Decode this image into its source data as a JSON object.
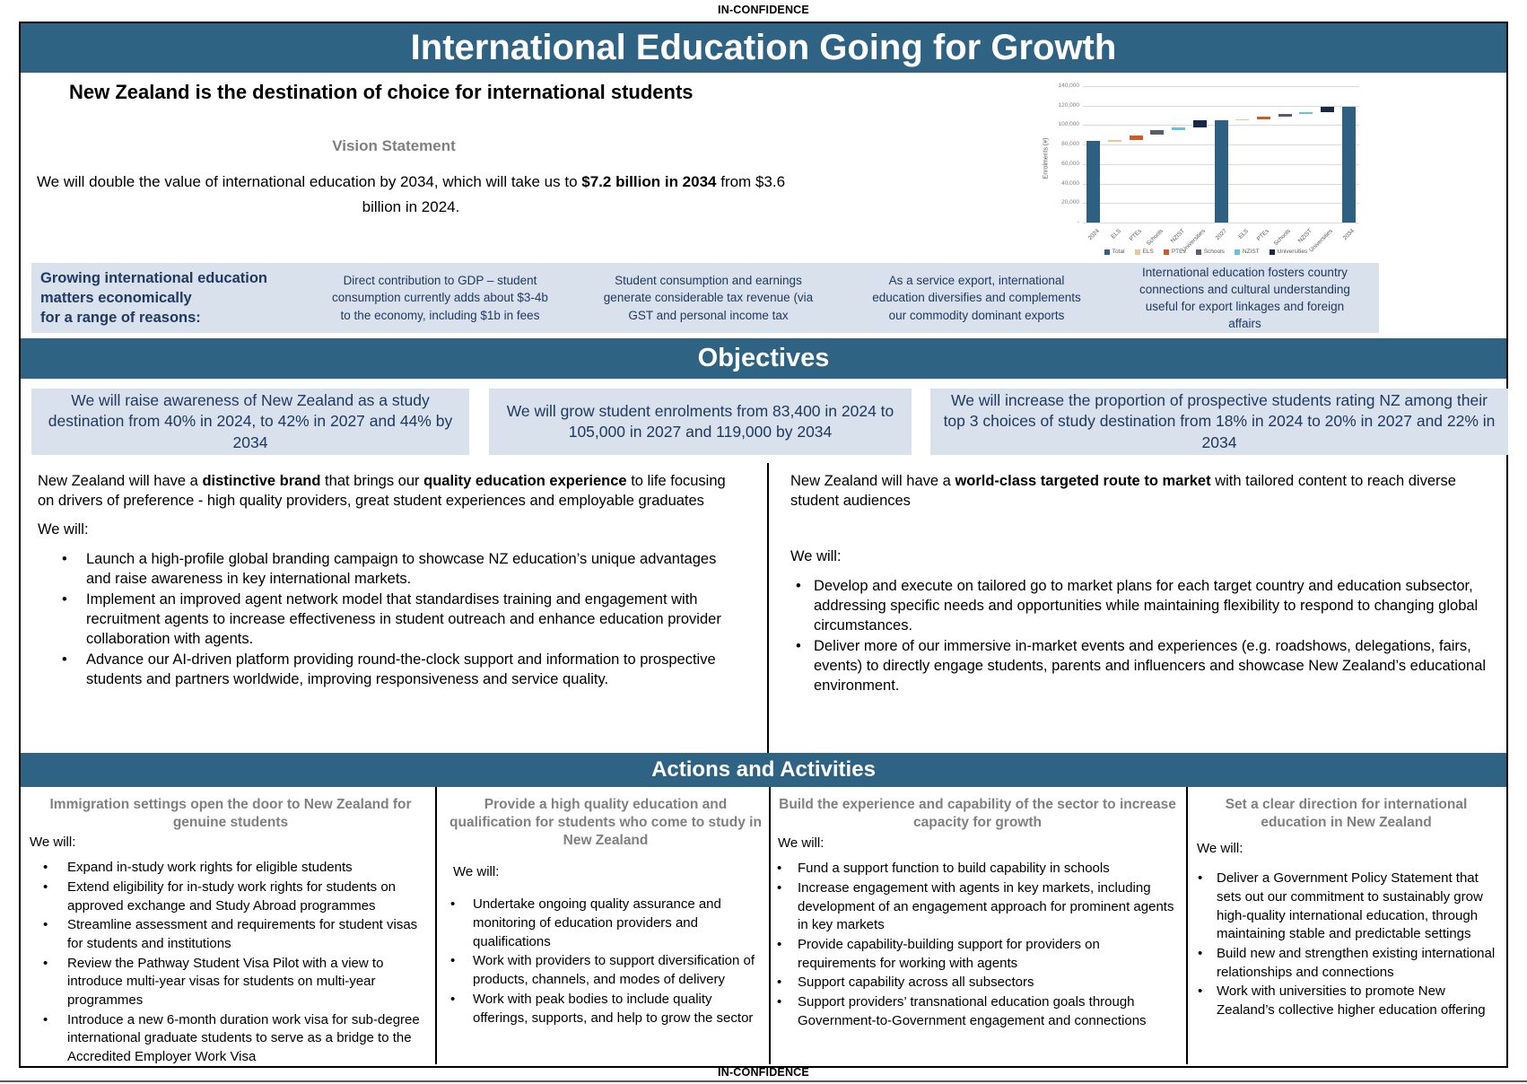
{
  "classification": {
    "top": "IN-CONFIDENCE",
    "bottom": "IN-CONFIDENCE"
  },
  "title": "International Education Going for Growth",
  "intro": {
    "heading": "New Zealand is the destination of choice for international students",
    "vision_label": "Vision Statement",
    "vision_rich": [
      {
        "t": "We will double the value of international education by 2034, which will take us to "
      },
      {
        "t": "$7.2 billion in 2034",
        "b": true
      },
      {
        "t": " from $3.6 billion in 2024."
      }
    ]
  },
  "economic": {
    "lead": "Growing international education\nmatters economically\nfor a range of reasons:",
    "items": [
      "Direct contribution to GDP – student consumption currently adds about $3-4b to the economy, including $1b in fees",
      "Student consumption and earnings generate considerable tax revenue (via GST and personal income tax",
      "As a service export, international education diversifies and complements our commodity dominant exports",
      "International education fosters country connections and cultural understanding useful for export linkages and foreign affairs"
    ]
  },
  "objectives": {
    "title": "Objectives",
    "boxes": [
      "We will raise awareness of New Zealand as a study destination from 40% in 2024, to 42% in 2027 and 44% by 2034",
      "We will grow student enrolments from 83,400 in 2024 to 105,000 in 2027 and 119,000 by 2034",
      "We will increase the proportion of prospective students rating NZ among their top 3 choices of study destination from 18% in 2024 to 20% in 2027 and 22% in 2034"
    ]
  },
  "strategies": {
    "left": {
      "intro_rich": [
        {
          "t": "New Zealand will have a "
        },
        {
          "t": "distinctive brand",
          "b": true
        },
        {
          "t": " that brings our "
        },
        {
          "t": "quality education experience",
          "b": true
        },
        {
          "t": " to life focusing on drivers of preference - high quality providers, great student experiences and employable graduates"
        }
      ],
      "we_will": "We will:",
      "bullets": [
        "Launch a high-profile global branding campaign to showcase NZ education’s unique advantages and raise awareness in key international markets.",
        "Implement an improved agent network model that standardises training and engagement with recruitment agents to increase effectiveness in student outreach and enhance education provider collaboration with agents.",
        "Advance our AI-driven platform providing round-the-clock support and information to prospective students and partners worldwide, improving responsiveness and service quality."
      ]
    },
    "right": {
      "intro_rich": [
        {
          "t": "New Zealand will have a "
        },
        {
          "t": "world-class targeted route to market",
          "b": true
        },
        {
          "t": " with tailored content to reach diverse student audiences"
        }
      ],
      "we_will": "We will:",
      "bullets": [
        "Develop and execute on tailored go to market plans for each target country and education subsector, addressing specific needs and opportunities while maintaining flexibility to respond to changing global circumstances.",
        "Deliver more of our immersive in-market events and experiences (e.g. roadshows, delegations, fairs, events) to directly engage students, parents and influencers and showcase New Zealand’s educational environment."
      ]
    }
  },
  "actions": {
    "title": "Actions and Activities",
    "columns": [
      {
        "heading": "Immigration settings open the door to New Zealand for genuine students",
        "we_will": "We will:",
        "bullets": [
          "Expand in-study work rights for eligible students",
          "Extend eligibility for in-study work rights for students on approved exchange and Study Abroad programmes",
          "Streamline assessment and requirements for student visas for students and institutions",
          "Review the Pathway Student Visa Pilot with a view to introduce multi-year visas for students on multi-year programmes",
          "Introduce a new 6-month duration work visa for sub-degree international graduate students  to serve as a bridge to the Accredited Employer Work Visa"
        ]
      },
      {
        "heading": "Provide a high quality education and qualification for students who come to study in New Zealand",
        "we_will": "We will:",
        "bullets": [
          "Undertake ongoing quality assurance and monitoring of education providers and qualifications",
          "Work with providers to support diversification of products, channels, and modes of delivery",
          "Work with peak bodies to include quality offerings, supports, and help to grow the sector"
        ]
      },
      {
        "heading": "Build the experience and capability of the sector to increase capacity for growth",
        "we_will": "We will:",
        "bullets": [
          "Fund a support function to build capability in schools",
          "Increase engagement with agents in key markets, including development of an engagement approach for prominent agents in key markets",
          "Provide capability-building support for providers on requirements for working with agents",
          "Support capability across all subsectors",
          "Support providers’ transnational education goals through Government-to-Government engagement and connections"
        ]
      },
      {
        "heading": "Set a clear direction for international education in New Zealand",
        "we_will": "We will:",
        "bullets": [
          "Deliver a Government Policy Statement that sets out our commitment to sustainably grow high-quality international education, through maintaining stable and predictable settings",
          "Build new and strengthen existing international relationships and connections",
          "Work with universities to promote New Zealand’s collective higher education offering"
        ]
      }
    ]
  },
  "chart_data": {
    "type": "bar",
    "subtype": "waterfall",
    "title": "",
    "xlabel": "",
    "ylabel": "Enrolments (#)",
    "ylim": [
      0,
      140000
    ],
    "ytick_step": 20000,
    "yticks": [
      "-",
      "20,000",
      "40,000",
      "60,000",
      "80,000",
      "100,000",
      "120,000",
      "140,000"
    ],
    "grid": true,
    "legend_position": "bottom",
    "categories": [
      "2024",
      "ELS",
      "PTEs",
      "Schools",
      "NZIST",
      "Universities",
      "2027",
      "ELS",
      "PTEs",
      "Schools",
      "NZIST",
      "Universities",
      "2034"
    ],
    "bars": [
      {
        "label": "2024",
        "series": "Total",
        "start": 0,
        "end": 83400
      },
      {
        "label": "ELS",
        "series": "ELS",
        "start": 83400,
        "end": 84600
      },
      {
        "label": "PTEs",
        "series": "PTEs",
        "start": 84600,
        "end": 89800
      },
      {
        "label": "Schools",
        "series": "Schools",
        "start": 89800,
        "end": 95200
      },
      {
        "label": "NZIST",
        "series": "NZIST",
        "start": 95200,
        "end": 97200
      },
      {
        "label": "Universities",
        "series": "Universities",
        "start": 97200,
        "end": 105000
      },
      {
        "label": "2027",
        "series": "Total",
        "start": 0,
        "end": 105000
      },
      {
        "label": "ELS",
        "series": "ELS",
        "start": 105000,
        "end": 106200
      },
      {
        "label": "PTEs",
        "series": "PTEs",
        "start": 106200,
        "end": 108600
      },
      {
        "label": "Schools",
        "series": "Schools",
        "start": 108600,
        "end": 111800
      },
      {
        "label": "NZIST",
        "series": "NZIST",
        "start": 111800,
        "end": 113200
      },
      {
        "label": "Universities",
        "series": "Universities",
        "start": 113200,
        "end": 119000
      },
      {
        "label": "2034",
        "series": "Total",
        "start": 0,
        "end": 119000
      }
    ],
    "legend": [
      "Total",
      "ELS",
      "PTEs",
      "Schools",
      "NZIST",
      "Universities"
    ],
    "colors": {
      "Total": "#2e6181",
      "ELS": "#e8c69e",
      "PTEs": "#cd5c28",
      "Schools": "#545f6b",
      "NZIST": "#66c3da",
      "Universities": "#172944"
    }
  }
}
